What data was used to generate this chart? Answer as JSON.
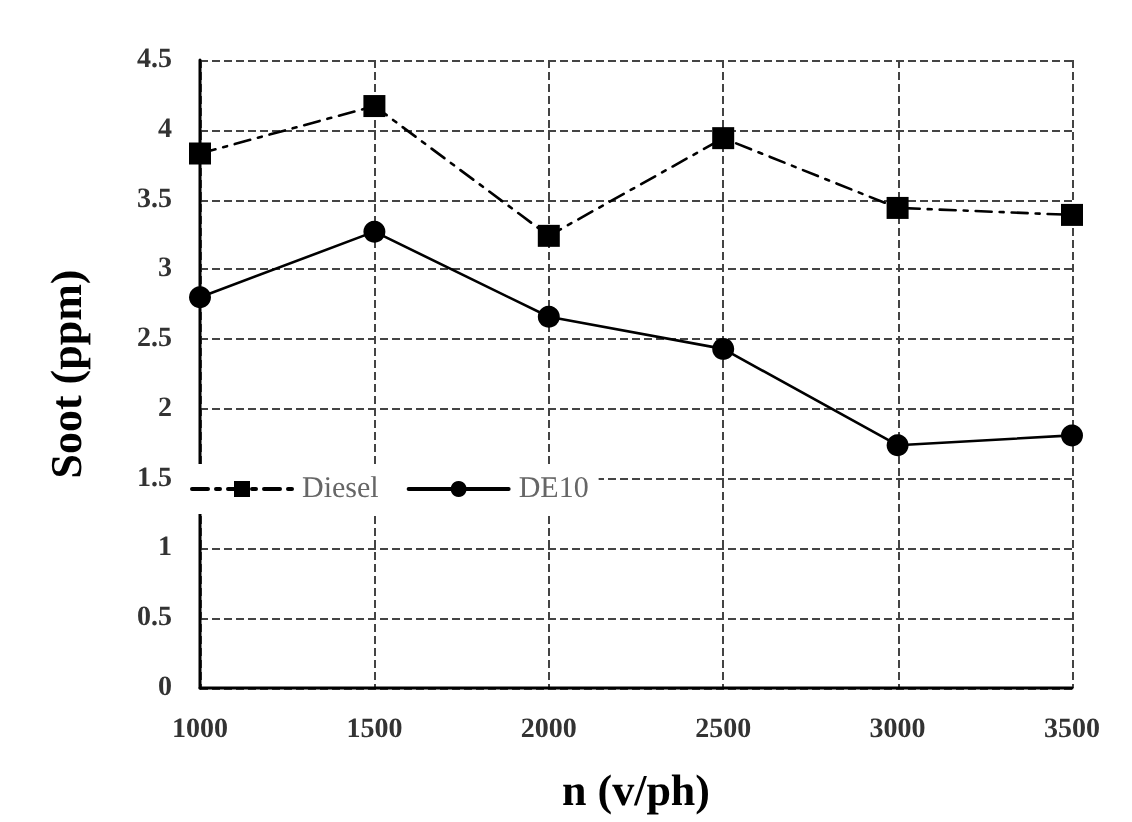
{
  "chart_data": {
    "type": "line",
    "xlabel": "n (v/ph)",
    "ylabel": "Soot (ppm)",
    "x": [
      1000,
      1500,
      2000,
      2500,
      3000,
      3500
    ],
    "series": [
      {
        "name": "Diesel",
        "color": "#000000",
        "marker": "square",
        "line_style": "dashed",
        "values": [
          3.83,
          4.17,
          3.24,
          3.94,
          3.44,
          3.39
        ]
      },
      {
        "name": "DE10",
        "color": "#000000",
        "marker": "circle",
        "line_style": "solid",
        "values": [
          2.8,
          3.27,
          2.66,
          2.43,
          1.74,
          1.81
        ]
      }
    ],
    "xlim": [
      1000,
      3500
    ],
    "xticks": [
      1000,
      1500,
      2000,
      2500,
      3000,
      3500
    ],
    "ylim": [
      0,
      4.5
    ],
    "yticks": [
      0,
      0.5,
      1,
      1.5,
      2,
      2.5,
      3,
      3.5,
      4,
      4.5
    ],
    "grid": true,
    "legend": "left"
  }
}
